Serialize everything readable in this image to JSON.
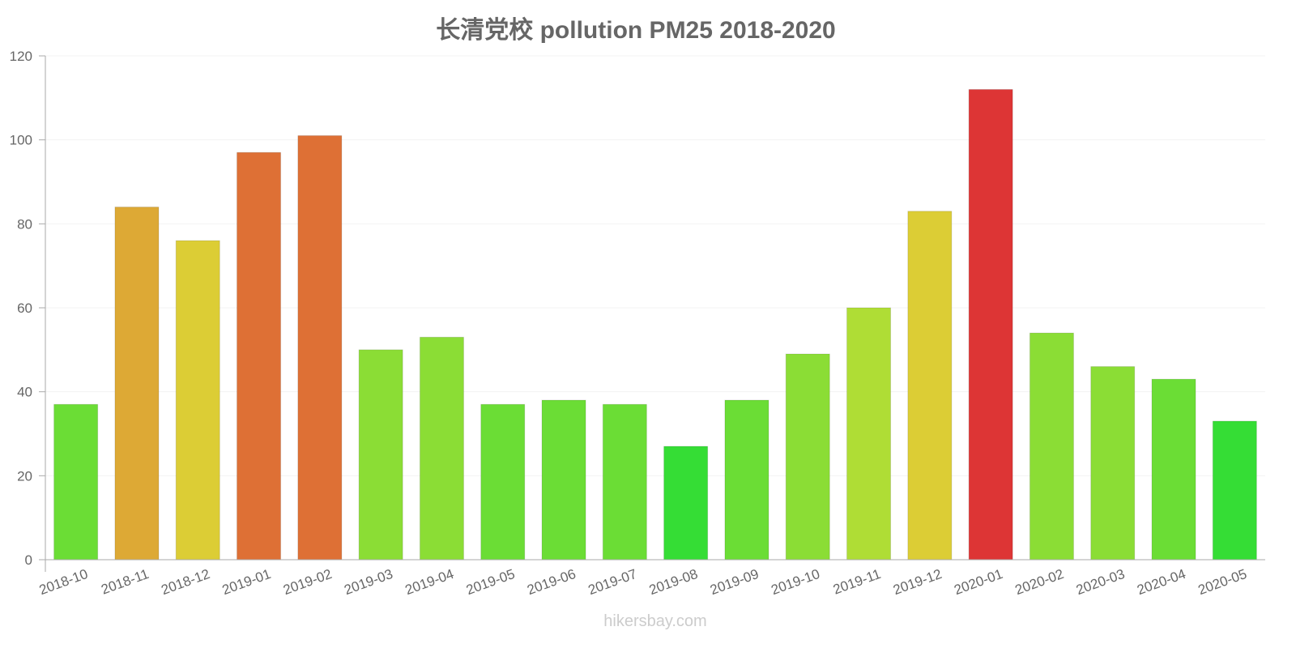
{
  "chart_data": {
    "type": "bar",
    "title": "长清党校 pollution PM25 2018-2020",
    "xlabel": "",
    "ylabel": "",
    "ylim": [
      0,
      120
    ],
    "yticks": [
      0,
      20,
      40,
      60,
      80,
      100,
      120
    ],
    "grid": true,
    "categories": [
      "2018-10",
      "2018-11",
      "2018-12",
      "2019-01",
      "2019-02",
      "2019-03",
      "2019-04",
      "2019-05",
      "2019-06",
      "2019-07",
      "2019-08",
      "2019-09",
      "2019-10",
      "2019-11",
      "2019-12",
      "2020-01",
      "2020-02",
      "2020-03",
      "2020-04",
      "2020-05"
    ],
    "values": [
      37,
      84,
      76,
      97,
      101,
      50,
      53,
      37,
      38,
      37,
      27,
      38,
      49,
      60,
      83,
      112,
      54,
      46,
      43,
      33
    ],
    "colors": [
      "#6bdd35",
      "#dda935",
      "#dccd35",
      "#de7035",
      "#de7035",
      "#8bdd35",
      "#8bdd35",
      "#6bdd35",
      "#6bdd35",
      "#6bdd35",
      "#35dd35",
      "#6bdd35",
      "#8bdd35",
      "#afdd35",
      "#dccd35",
      "#dd3535",
      "#8bdd35",
      "#8bdd35",
      "#6bdd35",
      "#35dd35"
    ]
  },
  "watermark": "hikersbay.com"
}
